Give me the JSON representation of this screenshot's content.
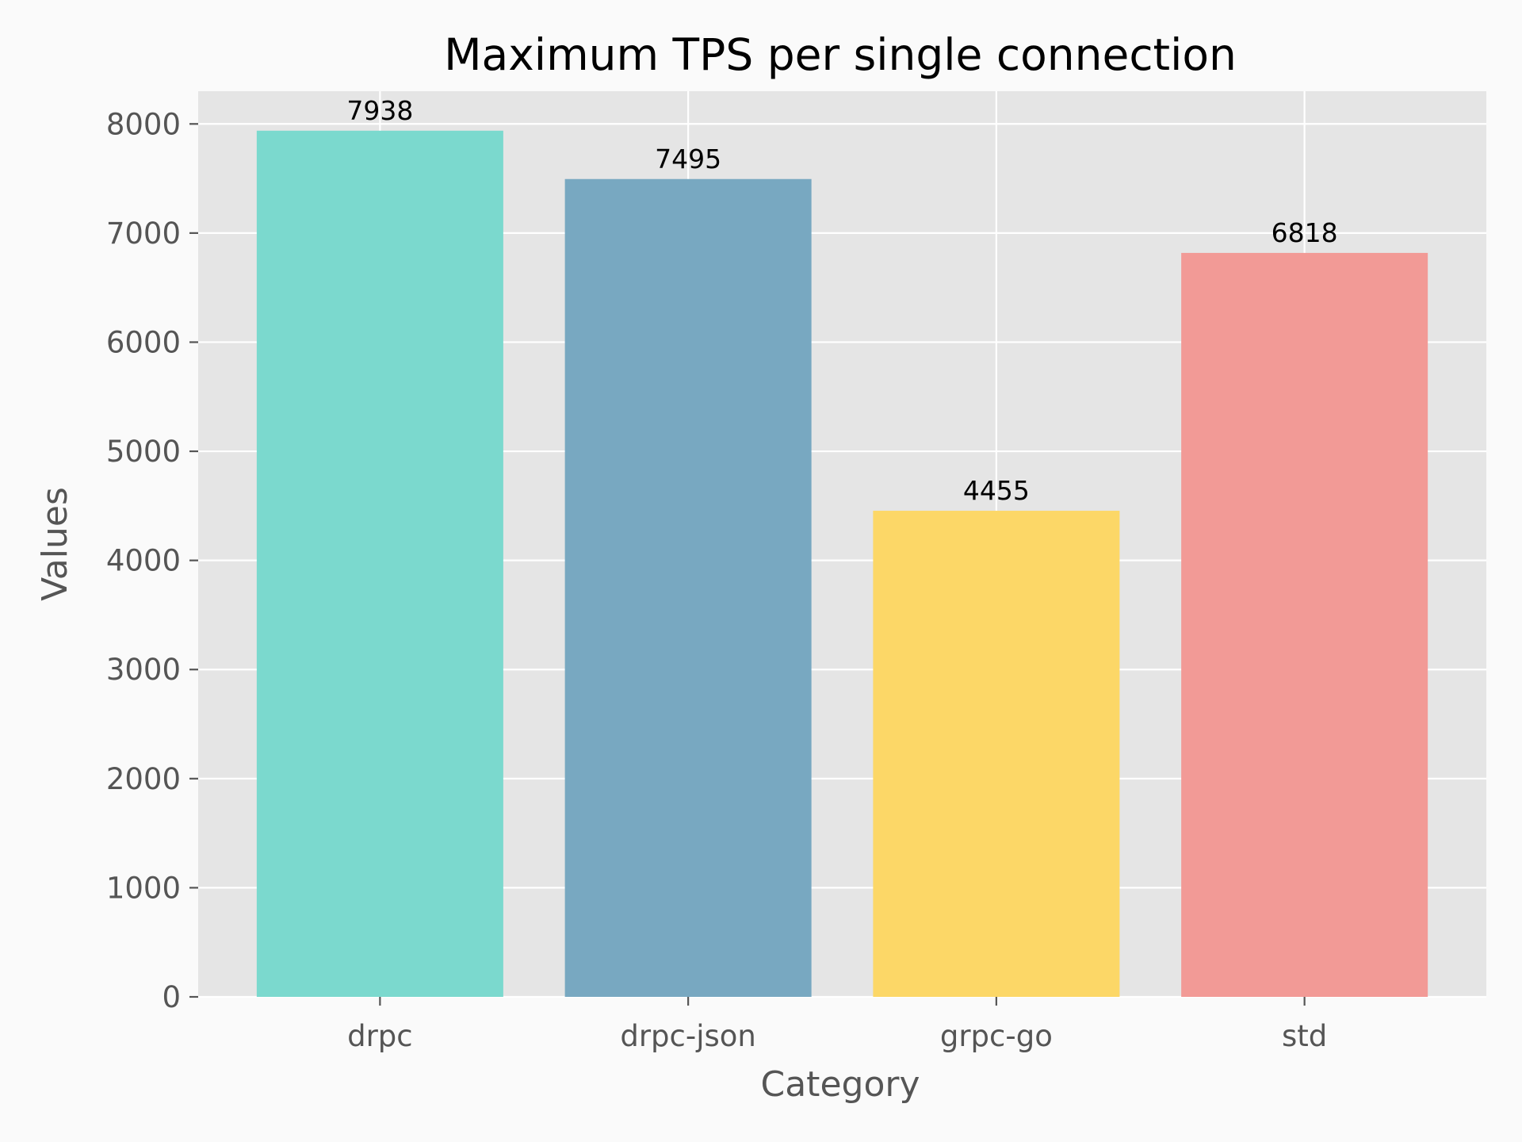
{
  "chart_data": {
    "type": "bar",
    "title": "Maximum TPS per single connection",
    "xlabel": "Category",
    "ylabel": "Values",
    "categories": [
      "drpc",
      "drpc-json",
      "grpc-go",
      "std"
    ],
    "values": [
      7938,
      7495,
      4455,
      6818
    ],
    "data_labels": [
      "7938",
      "7495",
      "4455",
      "6818"
    ],
    "bar_colors": [
      "#7bd9ce",
      "#78a8c1",
      "#fcd767",
      "#f29a96"
    ],
    "ylim": [
      0,
      8300
    ],
    "yticks": [
      0,
      1000,
      2000,
      3000,
      4000,
      5000,
      6000,
      7000,
      8000
    ],
    "ytick_labels": [
      "0",
      "1000",
      "2000",
      "3000",
      "4000",
      "5000",
      "6000",
      "7000",
      "8000"
    ],
    "grid": true,
    "plot_background": "#e5e5e5",
    "grid_color": "#ffffff",
    "figure_background": "#fafafa"
  }
}
